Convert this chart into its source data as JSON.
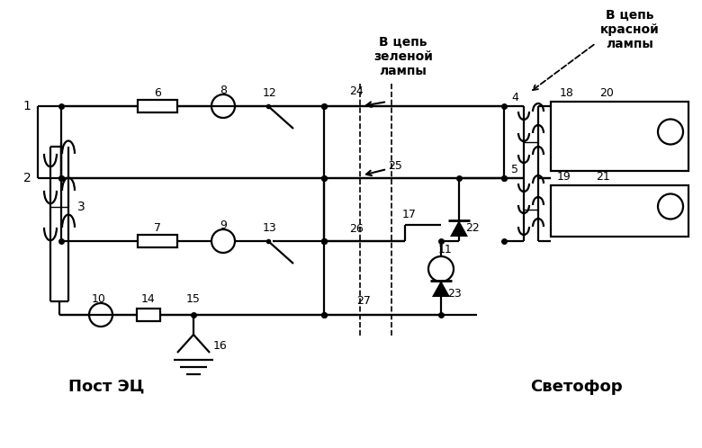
{
  "bg_color": "#ffffff",
  "lw": 1.6,
  "R1": 380,
  "R2": 300,
  "R3": 230,
  "RB": 148,
  "LBX": 50,
  "LBX2": 70,
  "post_ec": "Пост ЭЦ",
  "svetofor": "Светофор",
  "v_cep_zelenoy": "В цепь\nзеленой\nлампы",
  "v_cep_krasnoy": "В цепь\nкрасной\nлампы"
}
